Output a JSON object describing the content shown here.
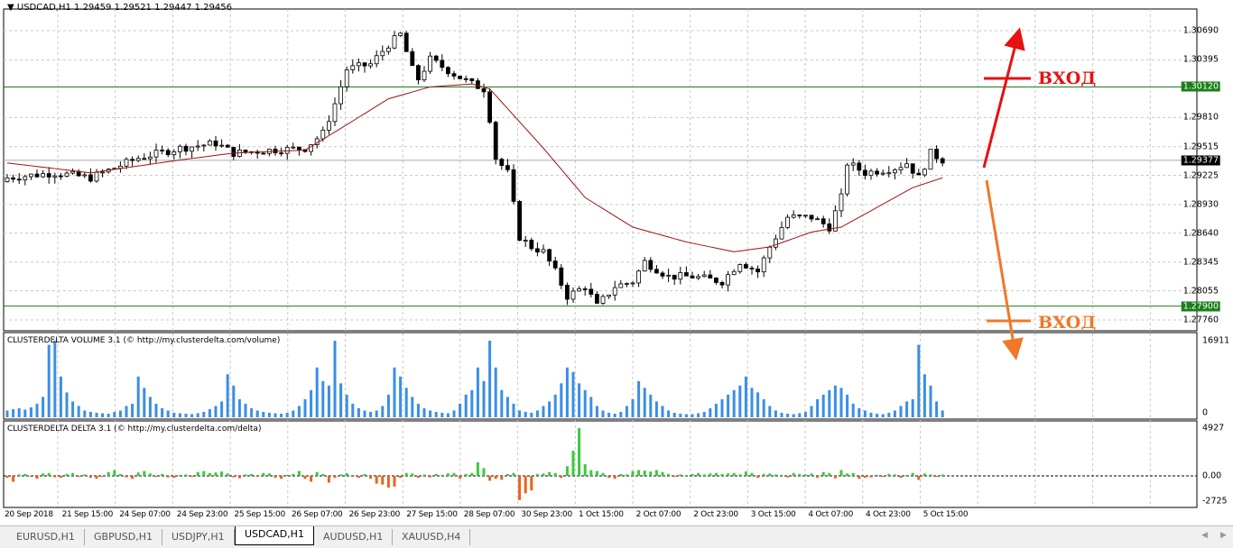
{
  "header": {
    "symbol": "USDCAD,H1",
    "ohlc": "1.29459 1.29521 1.29447 1.29456"
  },
  "indicators": {
    "volume_title": "CLUSTERDELTA VOLUME 3.1 (© http://my.clusterdelta.com/volume)",
    "delta_title": "CLUSTERDELTA DELTA 3.1 (© http://my.clusterdelta.com/delta)"
  },
  "colors": {
    "bull_candle": "#ffffff",
    "bear_candle": "#000000",
    "ma": "#a01010",
    "level": "#1a7f1a",
    "volume": "#3a8ee6",
    "delta_pos": "#3cc83c",
    "delta_neg": "#e8641e",
    "entry_up": "#e81010",
    "entry_down": "#f07828"
  },
  "annotations": {
    "entry_up": "ВХОД",
    "entry_down": "ВХОД"
  },
  "tabs": [
    {
      "label": "EURUSD,H1"
    },
    {
      "label": "GBPUSD,H1"
    },
    {
      "label": "USDJPY,H1"
    },
    {
      "label": "USDCAD,H1",
      "active": true
    },
    {
      "label": "AUDUSD,H1"
    },
    {
      "label": "XAUUSD,H4"
    }
  ],
  "chart_data": [
    {
      "type": "candlestick",
      "price_ticks": [
        "1.30690",
        "1.30395",
        "1.29810",
        "1.29515",
        "1.29225",
        "1.28930",
        "1.28640",
        "1.28345",
        "1.28055",
        "1.27760"
      ],
      "ylim": [
        1.2776,
        1.3069
      ],
      "levels": [
        {
          "price": "1.30120"
        },
        {
          "price": "1.27900"
        }
      ],
      "current_price": "1.29377",
      "time_ticks": [
        "20 Sep 2018",
        "21 Sep 15:00",
        "24 Sep 07:00",
        "24 Sep 23:00",
        "25 Sep 15:00",
        "26 Sep 07:00",
        "26 Sep 23:00",
        "27 Sep 15:00",
        "28 Sep 07:00",
        "30 Sep 23:00",
        "1 Oct 15:00",
        "2 Oct 07:00",
        "2 Oct 23:00",
        "3 Oct 15:00",
        "4 Oct 07:00",
        "4 Oct 23:00",
        "5 Oct 15:00"
      ],
      "close_keypoints": [
        [
          0,
          1.292
        ],
        [
          8,
          1.2925
        ],
        [
          14,
          1.292
        ],
        [
          22,
          1.294
        ],
        [
          29,
          1.295
        ],
        [
          35,
          1.2955
        ],
        [
          38,
          1.2945
        ],
        [
          44,
          1.2948
        ],
        [
          50,
          1.295
        ],
        [
          53,
          1.2965
        ],
        [
          55,
          1.2995
        ],
        [
          57,
          1.303
        ],
        [
          61,
          1.3035
        ],
        [
          64,
          1.3055
        ],
        [
          66,
          1.3065
        ],
        [
          68,
          1.303
        ],
        [
          69,
          1.302
        ],
        [
          71,
          1.304
        ],
        [
          75,
          1.3025
        ],
        [
          78,
          1.3015
        ],
        [
          80,
          1.301
        ],
        [
          81,
          1.298
        ],
        [
          82,
          1.294
        ],
        [
          84,
          1.2925
        ],
        [
          86,
          1.286
        ],
        [
          88,
          1.285
        ],
        [
          90,
          1.2845
        ],
        [
          92,
          1.2825
        ],
        [
          94,
          1.28
        ],
        [
          97,
          1.281
        ],
        [
          99,
          1.279
        ],
        [
          102,
          1.281
        ],
        [
          105,
          1.2815
        ],
        [
          107,
          1.2835
        ],
        [
          111,
          1.282
        ],
        [
          115,
          1.282
        ],
        [
          120,
          1.2815
        ],
        [
          123,
          1.2835
        ],
        [
          126,
          1.2825
        ],
        [
          128,
          1.285
        ],
        [
          131,
          1.288
        ],
        [
          135,
          1.288
        ],
        [
          138,
          1.287
        ],
        [
          140,
          1.29
        ],
        [
          141,
          1.2935
        ],
        [
          144,
          1.2925
        ],
        [
          149,
          1.293
        ],
        [
          151,
          1.2935
        ],
        [
          153,
          1.292
        ],
        [
          155,
          1.2945
        ],
        [
          157,
          1.2938
        ]
      ],
      "ma_keypoints": [
        [
          0,
          1.2935
        ],
        [
          14,
          1.2925
        ],
        [
          29,
          1.2938
        ],
        [
          38,
          1.2945
        ],
        [
          50,
          1.2948
        ],
        [
          56,
          1.297
        ],
        [
          64,
          1.3
        ],
        [
          71,
          1.3012
        ],
        [
          78,
          1.3015
        ],
        [
          81,
          1.301
        ],
        [
          90,
          1.295
        ],
        [
          97,
          1.29
        ],
        [
          105,
          1.287
        ],
        [
          114,
          1.2855
        ],
        [
          122,
          1.2845
        ],
        [
          128,
          1.285
        ],
        [
          135,
          1.2865
        ],
        [
          140,
          1.287
        ],
        [
          146,
          1.289
        ],
        [
          152,
          1.291
        ],
        [
          157,
          1.292
        ]
      ]
    },
    {
      "type": "bar",
      "name": "CLUSTERDELTA VOLUME 3.1",
      "ylim": [
        0,
        16911
      ],
      "ticks": [
        "16911",
        "0"
      ],
      "values": [
        1500,
        1800,
        2000,
        1700,
        2200,
        3000,
        4500,
        16000,
        16900,
        9000,
        5500,
        3500,
        2500,
        1500,
        1200,
        1000,
        900,
        800,
        1200,
        1500,
        2500,
        3000,
        9000,
        6500,
        4500,
        3000,
        2000,
        1500,
        1000,
        900,
        800,
        700,
        900,
        1200,
        1800,
        2500,
        3500,
        9500,
        7000,
        4000,
        3000,
        2000,
        1500,
        1200,
        1000,
        900,
        800,
        1000,
        1500,
        2500,
        4000,
        6000,
        11000,
        8000,
        7000,
        16900,
        7500,
        5000,
        3000,
        2000,
        1500,
        1200,
        1500,
        2500,
        5000,
        11000,
        9000,
        6500,
        4500,
        3000,
        2000,
        1500,
        1200,
        1000,
        900,
        1500,
        3000,
        5000,
        6000,
        11000,
        8000,
        16900,
        11000,
        6000,
        4500,
        3000,
        1500,
        1200,
        1000,
        1500,
        2500,
        3500,
        5000,
        7500,
        11000,
        10000,
        7500,
        6000,
        4500,
        2500,
        1500,
        1000,
        800,
        1200,
        2500,
        4000,
        8000,
        6500,
        5000,
        3500,
        2500,
        1500,
        1000,
        800,
        700,
        700,
        900,
        1200,
        2000,
        3000,
        4000,
        5000,
        6000,
        7000,
        9000,
        6500,
        5500,
        4000,
        2500,
        1500,
        1000,
        800,
        700,
        900,
        1200,
        2500,
        4000,
        5000,
        6000,
        7000,
        6500,
        5000,
        3000,
        2000,
        1500,
        1000,
        800,
        700,
        1000,
        1500,
        2500,
        3500,
        4000,
        16000,
        9500,
        7000,
        3500,
        1500
      ]
    },
    {
      "type": "bar",
      "name": "CLUSTERDELTA DELTA 3.1",
      "ylim": [
        -2725,
        4927
      ],
      "ticks": [
        "4927",
        "0.00",
        "-2725"
      ],
      "values": [
        -200,
        -600,
        150,
        200,
        -100,
        -300,
        250,
        300,
        -150,
        -200,
        200,
        300,
        -100,
        150,
        -200,
        -300,
        -100,
        400,
        600,
        200,
        -150,
        -300,
        350,
        500,
        250,
        -100,
        200,
        -150,
        -200,
        100,
        150,
        -100,
        400,
        500,
        300,
        350,
        450,
        250,
        -150,
        -250,
        150,
        200,
        -100,
        300,
        250,
        -200,
        -300,
        100,
        200,
        500,
        -300,
        -600,
        400,
        200,
        -700,
        -200,
        150,
        300,
        -100,
        -200,
        200,
        -300,
        -800,
        -900,
        -1200,
        -1100,
        -200,
        300,
        250,
        -200,
        150,
        -150,
        200,
        100,
        250,
        300,
        -300,
        200,
        300,
        1400,
        800,
        -500,
        -300,
        -400,
        200,
        300,
        -2500,
        -1800,
        -1500,
        200,
        250,
        400,
        300,
        -200,
        1000,
        2600,
        4927,
        1200,
        600,
        500,
        300,
        -200,
        -300,
        200,
        150,
        500,
        600,
        550,
        450,
        600,
        400,
        200,
        -100,
        150,
        100,
        200,
        300,
        150,
        250,
        300,
        200,
        250,
        300,
        150,
        450,
        300,
        -200,
        200,
        250,
        150,
        100,
        -150,
        300,
        200,
        150,
        250,
        -200,
        400,
        300,
        -250,
        600,
        250,
        300,
        -300,
        -200,
        -150,
        100,
        -100,
        200,
        150,
        -200,
        100,
        300,
        -400,
        250,
        150,
        -100,
        150
      ]
    }
  ]
}
